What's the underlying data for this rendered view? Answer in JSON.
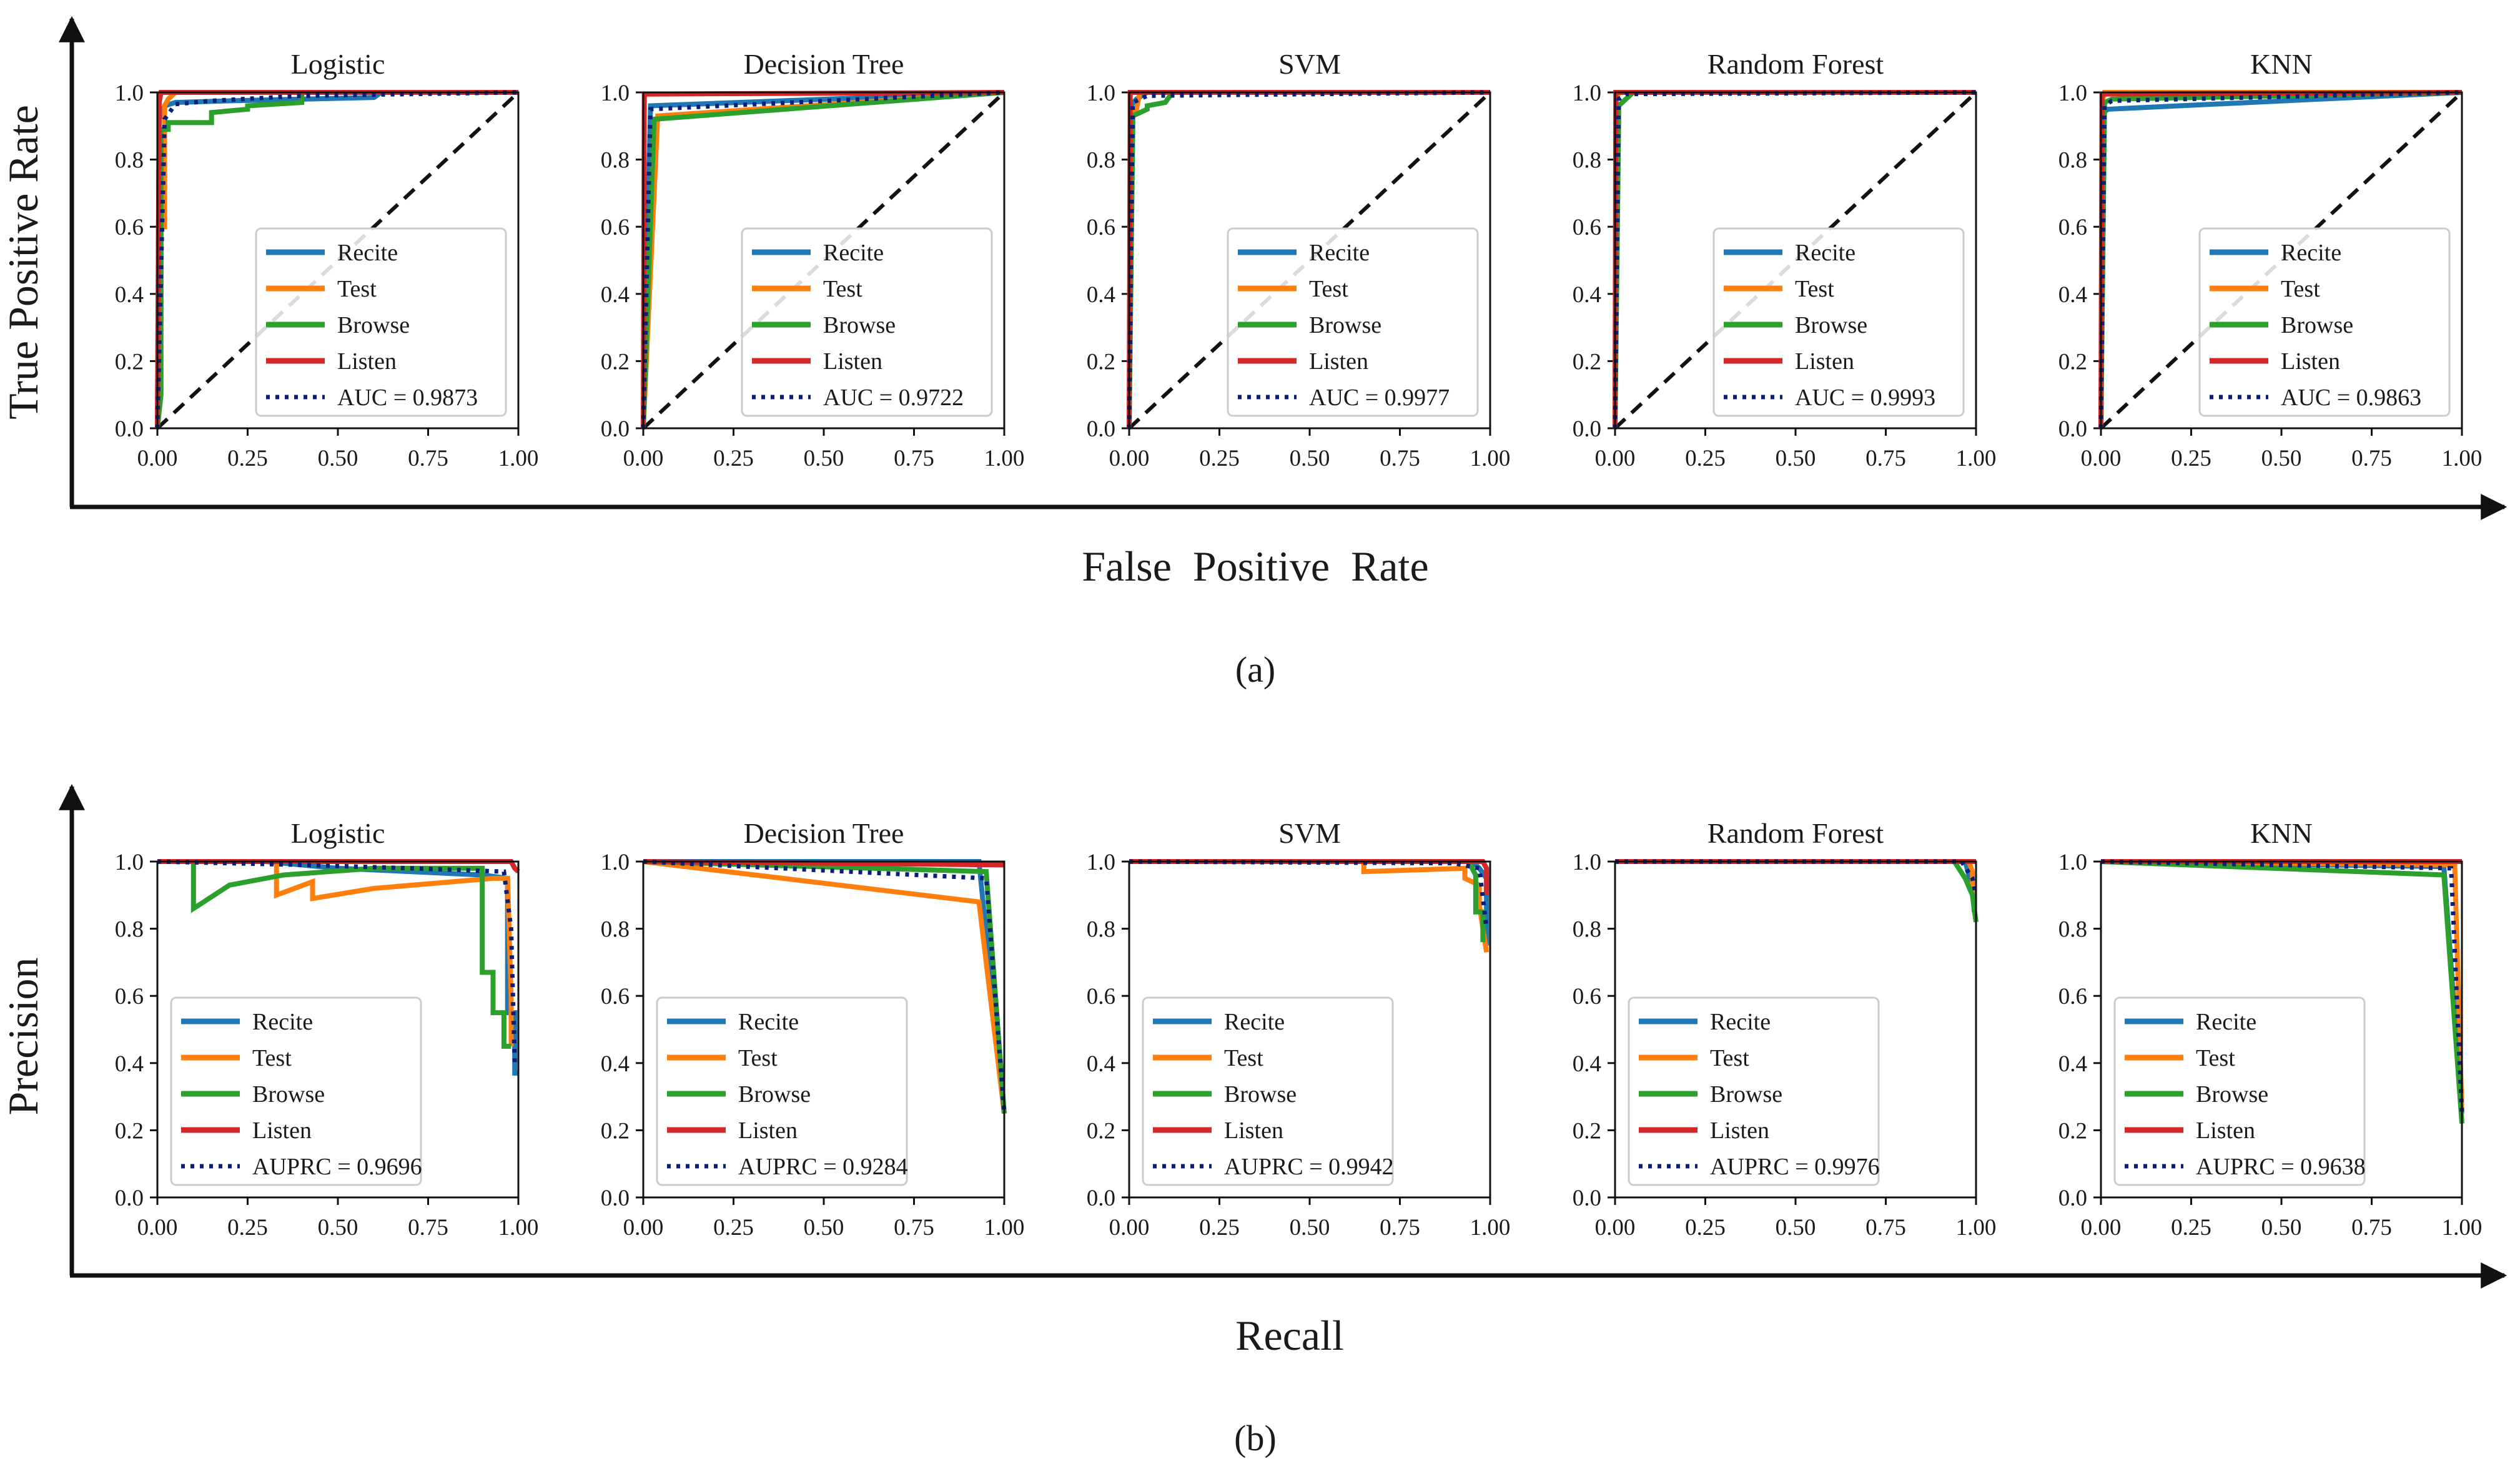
{
  "figure": {
    "row_a": {
      "ylabel": "True Positive Rate",
      "xlabel": "False  Positive  Rate",
      "caption": "(a)"
    },
    "row_b": {
      "ylabel": "Precision",
      "xlabel": "Recall",
      "caption": "(b)"
    }
  },
  "chart_data": [
    {
      "type": "line",
      "panel": "roc",
      "title": "Logistic",
      "xlim": [
        0,
        1
      ],
      "ylim": [
        0,
        1
      ],
      "legend": "lower-right",
      "auc_label": "AUC = 0.9873",
      "xticks": [
        "0.00",
        "0.25",
        "0.50",
        "0.75",
        "1.00"
      ],
      "yticks": [
        "0.0",
        "0.2",
        "0.4",
        "0.6",
        "0.8",
        "1.0"
      ],
      "series": [
        {
          "name": "Recite",
          "color": "#1f77b4",
          "x": [
            0,
            0.005,
            0.02,
            0.05,
            0.2,
            0.6,
            0.62,
            1.0
          ],
          "y": [
            0,
            0.92,
            0.96,
            0.97,
            0.975,
            0.985,
            1.0,
            1.0
          ]
        },
        {
          "name": "Test",
          "color": "#ff7f0e",
          "x": [
            0,
            0.01,
            0.01,
            0.02,
            0.02,
            0.03,
            0.05,
            1.0
          ],
          "y": [
            0,
            0.32,
            0.6,
            0.6,
            0.96,
            0.98,
            1.0,
            1.0
          ]
        },
        {
          "name": "Browse",
          "color": "#2ca02c",
          "x": [
            0,
            0.01,
            0.01,
            0.03,
            0.03,
            0.15,
            0.15,
            0.25,
            0.25,
            0.4,
            0.4,
            1.0
          ],
          "y": [
            0,
            0.1,
            0.89,
            0.89,
            0.91,
            0.91,
            0.94,
            0.95,
            0.96,
            0.97,
            1.0,
            1.0
          ]
        },
        {
          "name": "Listen",
          "color": "#d62728",
          "x": [
            0,
            0.005,
            0.01,
            1.0
          ],
          "y": [
            0,
            0.97,
            1.0,
            1.0
          ]
        }
      ],
      "average": {
        "name": "AUC = 0.9873",
        "color": "#0b1f7a",
        "x": [
          0,
          0.02,
          0.05,
          0.15,
          0.4,
          1.0
        ],
        "y": [
          0,
          0.92,
          0.965,
          0.975,
          0.99,
          1.0
        ]
      }
    },
    {
      "type": "line",
      "panel": "roc",
      "title": "Decision Tree",
      "xlim": [
        0,
        1
      ],
      "ylim": [
        0,
        1
      ],
      "legend": "lower-right",
      "auc_label": "AUC = 0.9722",
      "xticks": [
        "0.00",
        "0.25",
        "0.50",
        "0.75",
        "1.00"
      ],
      "yticks": [
        "0.0",
        "0.2",
        "0.4",
        "0.6",
        "0.8",
        "1.0"
      ],
      "series": [
        {
          "name": "Recite",
          "color": "#1f77b4",
          "x": [
            0,
            0.02,
            1.0
          ],
          "y": [
            0,
            0.96,
            1.0
          ]
        },
        {
          "name": "Test",
          "color": "#ff7f0e",
          "x": [
            0,
            0.04,
            1.0
          ],
          "y": [
            0,
            0.93,
            1.0
          ]
        },
        {
          "name": "Browse",
          "color": "#2ca02c",
          "x": [
            0,
            0.03,
            1.0
          ],
          "y": [
            0,
            0.92,
            1.0
          ]
        },
        {
          "name": "Listen",
          "color": "#d62728",
          "x": [
            0,
            0.003,
            1.0
          ],
          "y": [
            0,
            0.995,
            1.0
          ]
        }
      ],
      "average": {
        "name": "AUC = 0.9722",
        "color": "#0b1f7a",
        "x": [
          0,
          0.02,
          1.0
        ],
        "y": [
          0,
          0.95,
          1.0
        ]
      }
    },
    {
      "type": "line",
      "panel": "roc",
      "title": "SVM",
      "xlim": [
        0,
        1
      ],
      "ylim": [
        0,
        1
      ],
      "legend": "lower-right",
      "auc_label": "AUC = 0.9977",
      "xticks": [
        "0.00",
        "0.25",
        "0.50",
        "0.75",
        "1.00"
      ],
      "yticks": [
        "0.0",
        "0.2",
        "0.4",
        "0.6",
        "0.8",
        "1.0"
      ],
      "series": [
        {
          "name": "Recite",
          "color": "#1f77b4",
          "x": [
            0,
            0.005,
            0.02,
            0.05,
            1.0
          ],
          "y": [
            0,
            0.96,
            0.98,
            1.0,
            1.0
          ]
        },
        {
          "name": "Test",
          "color": "#ff7f0e",
          "x": [
            0,
            0.005,
            0.005,
            0.02,
            0.03,
            1.0
          ],
          "y": [
            0,
            0.65,
            0.93,
            0.95,
            1.0,
            1.0
          ]
        },
        {
          "name": "Browse",
          "color": "#2ca02c",
          "x": [
            0,
            0.01,
            0.01,
            0.05,
            0.05,
            0.1,
            0.12,
            1.0
          ],
          "y": [
            0,
            0.9,
            0.93,
            0.95,
            0.96,
            0.97,
            1.0,
            1.0
          ]
        },
        {
          "name": "Listen",
          "color": "#d62728",
          "x": [
            0,
            0.003,
            1.0
          ],
          "y": [
            0,
            1.0,
            1.0
          ]
        }
      ],
      "average": {
        "name": "AUC = 0.9977",
        "color": "#0b1f7a",
        "x": [
          0,
          0.01,
          0.05,
          1.0
        ],
        "y": [
          0,
          0.97,
          0.99,
          1.0
        ]
      }
    },
    {
      "type": "line",
      "panel": "roc",
      "title": "Random Forest",
      "xlim": [
        0,
        1
      ],
      "ylim": [
        0,
        1
      ],
      "legend": "lower-right",
      "auc_label": "AUC = 0.9993",
      "xticks": [
        "0.00",
        "0.25",
        "0.50",
        "0.75",
        "1.00"
      ],
      "yticks": [
        "0.0",
        "0.2",
        "0.4",
        "0.6",
        "0.8",
        "1.0"
      ],
      "series": [
        {
          "name": "Recite",
          "color": "#1f77b4",
          "x": [
            0,
            0.003,
            0.01,
            1.0
          ],
          "y": [
            0,
            0.98,
            1.0,
            1.0
          ]
        },
        {
          "name": "Test",
          "color": "#ff7f0e",
          "x": [
            0,
            0.003,
            0.01,
            1.0
          ],
          "y": [
            0,
            0.97,
            1.0,
            1.0
          ]
        },
        {
          "name": "Browse",
          "color": "#2ca02c",
          "x": [
            0,
            0.01,
            0.01,
            0.03,
            0.05,
            1.0
          ],
          "y": [
            0,
            0.92,
            0.96,
            0.98,
            1.0,
            1.0
          ]
        },
        {
          "name": "Listen",
          "color": "#d62728",
          "x": [
            0,
            0.002,
            1.0
          ],
          "y": [
            0,
            1.0,
            1.0
          ]
        }
      ],
      "average": {
        "name": "AUC = 0.9993",
        "color": "#0b1f7a",
        "x": [
          0,
          0.01,
          0.03,
          1.0
        ],
        "y": [
          0,
          0.98,
          0.995,
          1.0
        ]
      }
    },
    {
      "type": "line",
      "panel": "roc",
      "title": "KNN",
      "xlim": [
        0,
        1
      ],
      "ylim": [
        0,
        1
      ],
      "legend": "lower-right",
      "auc_label": "AUC = 0.9863",
      "xticks": [
        "0.00",
        "0.25",
        "0.50",
        "0.75",
        "1.00"
      ],
      "yticks": [
        "0.0",
        "0.2",
        "0.4",
        "0.6",
        "0.8",
        "1.0"
      ],
      "series": [
        {
          "name": "Recite",
          "color": "#1f77b4",
          "x": [
            0,
            0.005,
            0.02,
            1.0
          ],
          "y": [
            0,
            0.94,
            0.95,
            1.0
          ]
        },
        {
          "name": "Test",
          "color": "#ff7f0e",
          "x": [
            0,
            0.005,
            0.01,
            1.0
          ],
          "y": [
            0,
            0.98,
            1.0,
            1.0
          ]
        },
        {
          "name": "Browse",
          "color": "#2ca02c",
          "x": [
            0,
            0.01,
            0.03,
            1.0
          ],
          "y": [
            0,
            0.97,
            0.98,
            1.0
          ]
        },
        {
          "name": "Listen",
          "color": "#d62728",
          "x": [
            0,
            0.003,
            1.0
          ],
          "y": [
            0,
            0.995,
            1.0
          ]
        }
      ],
      "average": {
        "name": "AUC = 0.9863",
        "color": "#0b1f7a",
        "x": [
          0,
          0.01,
          0.03,
          1.0
        ],
        "y": [
          0,
          0.96,
          0.975,
          1.0
        ]
      }
    },
    {
      "type": "line",
      "panel": "pr",
      "title": "Logistic",
      "xlim": [
        0,
        1
      ],
      "ylim": [
        0,
        1
      ],
      "legend": "lower-left",
      "auc_label": "AUPRC = 0.9696",
      "xticks": [
        "0.00",
        "0.25",
        "0.50",
        "0.75",
        "1.00"
      ],
      "yticks": [
        "0.0",
        "0.2",
        "0.4",
        "0.6",
        "0.8",
        "1.0"
      ],
      "series": [
        {
          "name": "Recite",
          "color": "#1f77b4",
          "x": [
            0,
            0.3,
            0.5,
            0.7,
            0.9,
            0.97,
            0.97,
            0.99,
            0.99,
            1.0
          ],
          "y": [
            1.0,
            1.0,
            0.98,
            0.97,
            0.96,
            0.95,
            0.55,
            0.55,
            0.37,
            0.37
          ]
        },
        {
          "name": "Test",
          "color": "#ff7f0e",
          "x": [
            0,
            0.33,
            0.33,
            0.43,
            0.43,
            0.6,
            0.93,
            0.97,
            0.98,
            0.98
          ],
          "y": [
            1.0,
            1.0,
            0.9,
            0.94,
            0.89,
            0.92,
            0.95,
            0.95,
            0.6,
            0.45
          ]
        },
        {
          "name": "Browse",
          "color": "#2ca02c",
          "x": [
            0,
            0.1,
            0.1,
            0.2,
            0.35,
            0.6,
            0.9,
            0.9,
            0.93,
            0.93,
            0.96,
            0.96,
            0.98
          ],
          "y": [
            1.0,
            1.0,
            0.86,
            0.93,
            0.96,
            0.98,
            0.98,
            0.67,
            0.67,
            0.55,
            0.55,
            0.45,
            0.45
          ]
        },
        {
          "name": "Listen",
          "color": "#d62728",
          "x": [
            0,
            0.98,
            0.99,
            1.0
          ],
          "y": [
            1.0,
            1.0,
            0.98,
            0.97
          ]
        }
      ],
      "average": {
        "name": "AUPRC = 0.9696",
        "color": "#0b1f7a",
        "x": [
          0,
          0.4,
          0.7,
          0.96,
          0.98,
          0.99
        ],
        "y": [
          1.0,
          0.99,
          0.98,
          0.97,
          0.8,
          0.4
        ]
      }
    },
    {
      "type": "line",
      "panel": "pr",
      "title": "Decision Tree",
      "xlim": [
        0,
        1
      ],
      "ylim": [
        0,
        1
      ],
      "legend": "lower-left",
      "auc_label": "AUPRC = 0.9284",
      "xticks": [
        "0.00",
        "0.25",
        "0.50",
        "0.75",
        "1.00"
      ],
      "yticks": [
        "0.0",
        "0.2",
        "0.4",
        "0.6",
        "0.8",
        "1.0"
      ],
      "series": [
        {
          "name": "Recite",
          "color": "#1f77b4",
          "x": [
            0,
            0.93,
            1.0
          ],
          "y": [
            1.0,
            1.0,
            0.25
          ]
        },
        {
          "name": "Test",
          "color": "#ff7f0e",
          "x": [
            0,
            0.93,
            1.0
          ],
          "y": [
            1.0,
            0.88,
            0.25
          ]
        },
        {
          "name": "Browse",
          "color": "#2ca02c",
          "x": [
            0,
            0.95,
            1.0
          ],
          "y": [
            1.0,
            0.97,
            0.25
          ]
        },
        {
          "name": "Listen",
          "color": "#d62728",
          "x": [
            0,
            0.99,
            1.0
          ],
          "y": [
            1.0,
            0.99,
            0.99
          ]
        }
      ],
      "average": {
        "name": "AUPRC = 0.9284",
        "color": "#0b1f7a",
        "x": [
          0,
          0.95,
          1.0
        ],
        "y": [
          1.0,
          0.95,
          0.25
        ]
      }
    },
    {
      "type": "line",
      "panel": "pr",
      "title": "SVM",
      "xlim": [
        0,
        1
      ],
      "ylim": [
        0,
        1
      ],
      "legend": "lower-left",
      "auc_label": "AUPRC = 0.9942",
      "xticks": [
        "0.00",
        "0.25",
        "0.50",
        "0.75",
        "1.00"
      ],
      "yticks": [
        "0.0",
        "0.2",
        "0.4",
        "0.6",
        "0.8",
        "1.0"
      ],
      "series": [
        {
          "name": "Recite",
          "color": "#1f77b4",
          "x": [
            0,
            0.95,
            0.97,
            0.99,
            0.99
          ],
          "y": [
            1.0,
            1.0,
            0.98,
            0.95,
            0.75
          ]
        },
        {
          "name": "Test",
          "color": "#ff7f0e",
          "x": [
            0,
            0.65,
            0.65,
            0.93,
            0.93,
            0.97,
            0.97,
            0.99
          ],
          "y": [
            1.0,
            1.0,
            0.97,
            0.98,
            0.95,
            0.93,
            0.87,
            0.73
          ]
        },
        {
          "name": "Browse",
          "color": "#2ca02c",
          "x": [
            0,
            0.94,
            0.96,
            0.96,
            0.98,
            0.98
          ],
          "y": [
            1.0,
            1.0,
            0.96,
            0.85,
            0.85,
            0.76
          ]
        },
        {
          "name": "Listen",
          "color": "#d62728",
          "x": [
            0,
            0.98,
            0.99,
            0.99
          ],
          "y": [
            1.0,
            1.0,
            0.98,
            0.9
          ]
        }
      ],
      "average": {
        "name": "AUPRC = 0.9942",
        "color": "#0b1f7a",
        "x": [
          0,
          0.9,
          0.97,
          0.99
        ],
        "y": [
          1.0,
          0.995,
          0.98,
          0.8
        ]
      }
    },
    {
      "type": "line",
      "panel": "pr",
      "title": "Random Forest",
      "xlim": [
        0,
        1
      ],
      "ylim": [
        0,
        1
      ],
      "legend": "lower-left",
      "auc_label": "AUPRC = 0.9976",
      "xticks": [
        "0.00",
        "0.25",
        "0.50",
        "0.75",
        "1.00"
      ],
      "yticks": [
        "0.0",
        "0.2",
        "0.4",
        "0.6",
        "0.8",
        "1.0"
      ],
      "series": [
        {
          "name": "Recite",
          "color": "#1f77b4",
          "x": [
            0,
            0.97,
            0.99,
            0.995
          ],
          "y": [
            1.0,
            1.0,
            0.92,
            0.85
          ]
        },
        {
          "name": "Test",
          "color": "#ff7f0e",
          "x": [
            0,
            0.98,
            0.99,
            0.99
          ],
          "y": [
            1.0,
            1.0,
            0.97,
            0.9
          ]
        },
        {
          "name": "Browse",
          "color": "#2ca02c",
          "x": [
            0,
            0.94,
            0.97,
            0.99,
            1.0
          ],
          "y": [
            1.0,
            1.0,
            0.95,
            0.9,
            0.82
          ]
        },
        {
          "name": "Listen",
          "color": "#d62728",
          "x": [
            0,
            1.0
          ],
          "y": [
            1.0,
            1.0
          ]
        }
      ],
      "average": {
        "name": "AUPRC = 0.9976",
        "color": "#0b1f7a",
        "x": [
          0,
          0.96,
          0.99,
          1.0
        ],
        "y": [
          1.0,
          1.0,
          0.95,
          0.9
        ]
      }
    },
    {
      "type": "line",
      "panel": "pr",
      "title": "KNN",
      "xlim": [
        0,
        1
      ],
      "ylim": [
        0,
        1
      ],
      "legend": "lower-left",
      "auc_label": "AUPRC = 0.9638",
      "xticks": [
        "0.00",
        "0.25",
        "0.50",
        "0.75",
        "1.00"
      ],
      "yticks": [
        "0.0",
        "0.2",
        "0.4",
        "0.6",
        "0.8",
        "1.0"
      ],
      "series": [
        {
          "name": "Recite",
          "color": "#1f77b4",
          "x": [
            0,
            0.95,
            1.0
          ],
          "y": [
            1.0,
            0.985,
            0.25
          ]
        },
        {
          "name": "Test",
          "color": "#ff7f0e",
          "x": [
            0,
            0.98,
            1.0
          ],
          "y": [
            1.0,
            0.99,
            0.25
          ]
        },
        {
          "name": "Browse",
          "color": "#2ca02c",
          "x": [
            0,
            0.95,
            1.0
          ],
          "y": [
            1.0,
            0.96,
            0.22
          ]
        },
        {
          "name": "Listen",
          "color": "#d62728",
          "x": [
            0,
            1.0
          ],
          "y": [
            1.0,
            1.0
          ]
        }
      ],
      "average": {
        "name": "AUPRC = 0.9638",
        "color": "#0b1f7a",
        "x": [
          0,
          0.97,
          1.0
        ],
        "y": [
          1.0,
          0.98,
          0.25
        ]
      }
    }
  ]
}
